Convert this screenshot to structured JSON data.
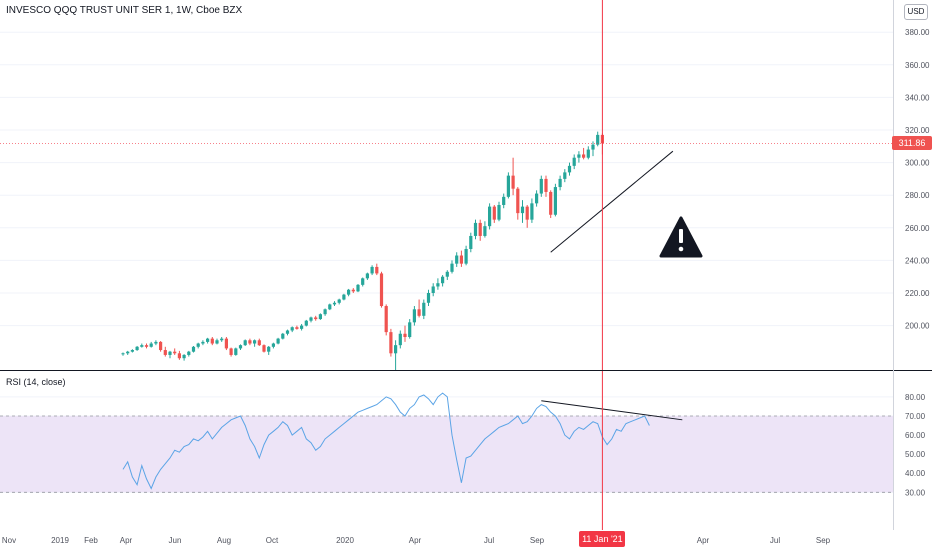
{
  "header": {
    "title": "INVESCO QQQ TRUST UNIT SER 1, 1W, Cboe BZX",
    "currency": "USD"
  },
  "rsi": {
    "label": "RSI (14, close)"
  },
  "colors": {
    "up": "#26a69a",
    "down": "#ef5350",
    "rsi_line": "#5ba4e6",
    "rsi_band": "#ede4f7",
    "crosshair": "#f23645",
    "grid": "#f0f3fa"
  },
  "crosshair": {
    "price_label": "311.86",
    "date_label": "11 Jan '21"
  },
  "icons": {
    "warning": "warning-icon"
  },
  "chart_data": [
    {
      "type": "candlestick",
      "title": "INVESCO QQQ TRUST UNIT SER 1, 1W, Cboe BZX",
      "y_ticks": [
        "200.00",
        "220.00",
        "240.00",
        "260.00",
        "280.00",
        "300.00",
        "320.00",
        "340.00",
        "360.00",
        "380.00"
      ],
      "ylim": [
        180,
        390
      ],
      "x_ticks": [
        "Nov",
        "2019",
        "Feb",
        "Apr",
        "Jun",
        "Aug",
        "Oct",
        "2020",
        "Apr",
        "Jul",
        "Sep",
        "11 Jan '21",
        "Apr",
        "Jul",
        "Sep"
      ],
      "last_price": 311.86,
      "trendline": {
        "from": {
          "week": 91,
          "value": 245
        },
        "to": {
          "week": 117,
          "value": 307
        }
      },
      "candles": [
        {
          "o": 182.5,
          "h": 183.5,
          "l": 181.5,
          "c": 183
        },
        {
          "o": 183,
          "h": 184.5,
          "l": 182,
          "c": 184
        },
        {
          "o": 184,
          "h": 185.5,
          "l": 183.5,
          "c": 185
        },
        {
          "o": 185,
          "h": 187.5,
          "l": 184.5,
          "c": 187
        },
        {
          "o": 187,
          "h": 189,
          "l": 186.5,
          "c": 188
        },
        {
          "o": 188,
          "h": 189,
          "l": 186,
          "c": 187
        },
        {
          "o": 187,
          "h": 190,
          "l": 186.5,
          "c": 189
        },
        {
          "o": 189,
          "h": 191,
          "l": 188,
          "c": 190
        },
        {
          "o": 190,
          "h": 190.5,
          "l": 184,
          "c": 185
        },
        {
          "o": 185,
          "h": 187,
          "l": 181,
          "c": 182
        },
        {
          "o": 182,
          "h": 184.5,
          "l": 180,
          "c": 184
        },
        {
          "o": 184,
          "h": 186,
          "l": 182,
          "c": 183
        },
        {
          "o": 183,
          "h": 184.5,
          "l": 179,
          "c": 180
        },
        {
          "o": 180,
          "h": 182.5,
          "l": 178.5,
          "c": 182
        },
        {
          "o": 182,
          "h": 184.5,
          "l": 181,
          "c": 184
        },
        {
          "o": 184,
          "h": 187.5,
          "l": 183.5,
          "c": 187
        },
        {
          "o": 187,
          "h": 189.5,
          "l": 186,
          "c": 189
        },
        {
          "o": 189,
          "h": 191,
          "l": 188,
          "c": 190
        },
        {
          "o": 190,
          "h": 192.5,
          "l": 189,
          "c": 192
        },
        {
          "o": 192,
          "h": 193,
          "l": 188,
          "c": 189
        },
        {
          "o": 189,
          "h": 192,
          "l": 188.5,
          "c": 191
        },
        {
          "o": 191,
          "h": 193,
          "l": 190,
          "c": 192
        },
        {
          "o": 192,
          "h": 193,
          "l": 185,
          "c": 186
        },
        {
          "o": 186,
          "h": 186.5,
          "l": 181,
          "c": 182
        },
        {
          "o": 182,
          "h": 186.5,
          "l": 181.5,
          "c": 186
        },
        {
          "o": 186,
          "h": 188.5,
          "l": 185,
          "c": 188
        },
        {
          "o": 188,
          "h": 191.5,
          "l": 187.5,
          "c": 191
        },
        {
          "o": 191,
          "h": 192,
          "l": 188,
          "c": 189
        },
        {
          "o": 189,
          "h": 191.5,
          "l": 187,
          "c": 191
        },
        {
          "o": 191,
          "h": 192,
          "l": 187.5,
          "c": 188
        },
        {
          "o": 188,
          "h": 188.5,
          "l": 183.5,
          "c": 184
        },
        {
          "o": 184,
          "h": 187.5,
          "l": 182,
          "c": 187
        },
        {
          "o": 187,
          "h": 189.5,
          "l": 186,
          "c": 189
        },
        {
          "o": 189,
          "h": 192.5,
          "l": 188.5,
          "c": 192
        },
        {
          "o": 192,
          "h": 195.5,
          "l": 191.5,
          "c": 195
        },
        {
          "o": 195,
          "h": 197.5,
          "l": 194,
          "c": 197
        },
        {
          "o": 197,
          "h": 199.5,
          "l": 196,
          "c": 199
        },
        {
          "o": 199,
          "h": 200,
          "l": 197.5,
          "c": 198
        },
        {
          "o": 198,
          "h": 201,
          "l": 197,
          "c": 200
        },
        {
          "o": 200,
          "h": 203.5,
          "l": 199.5,
          "c": 203
        },
        {
          "o": 203,
          "h": 205.5,
          "l": 202,
          "c": 205
        },
        {
          "o": 205,
          "h": 206,
          "l": 203,
          "c": 204
        },
        {
          "o": 204,
          "h": 207.5,
          "l": 203.5,
          "c": 207
        },
        {
          "o": 207,
          "h": 210.5,
          "l": 206,
          "c": 210
        },
        {
          "o": 210,
          "h": 213.5,
          "l": 209.5,
          "c": 213
        },
        {
          "o": 213,
          "h": 215,
          "l": 212,
          "c": 214
        },
        {
          "o": 214,
          "h": 216.5,
          "l": 213,
          "c": 216
        },
        {
          "o": 216,
          "h": 219.5,
          "l": 215.5,
          "c": 219
        },
        {
          "o": 219,
          "h": 222.5,
          "l": 218,
          "c": 222
        },
        {
          "o": 222,
          "h": 223,
          "l": 220,
          "c": 221
        },
        {
          "o": 221,
          "h": 225.5,
          "l": 220.5,
          "c": 225
        },
        {
          "o": 225,
          "h": 229.5,
          "l": 224,
          "c": 229
        },
        {
          "o": 229,
          "h": 232.5,
          "l": 228,
          "c": 232
        },
        {
          "o": 232,
          "h": 237,
          "l": 231,
          "c": 236
        },
        {
          "o": 236,
          "h": 238,
          "l": 231,
          "c": 232
        },
        {
          "o": 232,
          "h": 233,
          "l": 211,
          "c": 212
        },
        {
          "o": 212,
          "h": 213,
          "l": 194,
          "c": 196
        },
        {
          "o": 196,
          "h": 198,
          "l": 181,
          "c": 183
        },
        {
          "o": 183,
          "h": 191,
          "l": 170,
          "c": 188
        },
        {
          "o": 188,
          "h": 197,
          "l": 186,
          "c": 195
        },
        {
          "o": 195,
          "h": 200,
          "l": 190,
          "c": 193
        },
        {
          "o": 193,
          "h": 204,
          "l": 192,
          "c": 202
        },
        {
          "o": 202,
          "h": 212,
          "l": 200,
          "c": 210
        },
        {
          "o": 210,
          "h": 216,
          "l": 205,
          "c": 206
        },
        {
          "o": 206,
          "h": 216,
          "l": 204,
          "c": 214
        },
        {
          "o": 214,
          "h": 222,
          "l": 212,
          "c": 220
        },
        {
          "o": 220,
          "h": 226,
          "l": 218,
          "c": 224
        },
        {
          "o": 224,
          "h": 229,
          "l": 222,
          "c": 226
        },
        {
          "o": 226,
          "h": 231,
          "l": 224,
          "c": 230
        },
        {
          "o": 230,
          "h": 234,
          "l": 228,
          "c": 233
        },
        {
          "o": 233,
          "h": 240,
          "l": 232,
          "c": 238
        },
        {
          "o": 238,
          "h": 245,
          "l": 236,
          "c": 243
        },
        {
          "o": 243,
          "h": 246,
          "l": 236,
          "c": 238
        },
        {
          "o": 238,
          "h": 249,
          "l": 237,
          "c": 247
        },
        {
          "o": 247,
          "h": 257,
          "l": 245,
          "c": 255
        },
        {
          "o": 255,
          "h": 265,
          "l": 253,
          "c": 263
        },
        {
          "o": 263,
          "h": 265,
          "l": 252,
          "c": 255
        },
        {
          "o": 255,
          "h": 264,
          "l": 254,
          "c": 261
        },
        {
          "o": 261,
          "h": 275,
          "l": 259,
          "c": 273
        },
        {
          "o": 273,
          "h": 274,
          "l": 263,
          "c": 265
        },
        {
          "o": 265,
          "h": 276,
          "l": 264,
          "c": 274
        },
        {
          "o": 274,
          "h": 281,
          "l": 272,
          "c": 279
        },
        {
          "o": 279,
          "h": 294,
          "l": 278,
          "c": 292
        },
        {
          "o": 292,
          "h": 303,
          "l": 280,
          "c": 284
        },
        {
          "o": 284,
          "h": 285,
          "l": 265,
          "c": 269
        },
        {
          "o": 269,
          "h": 277,
          "l": 263,
          "c": 273
        },
        {
          "o": 273,
          "h": 274,
          "l": 260,
          "c": 265
        },
        {
          "o": 265,
          "h": 278,
          "l": 263,
          "c": 275
        },
        {
          "o": 275,
          "h": 283,
          "l": 273,
          "c": 281
        },
        {
          "o": 281,
          "h": 292,
          "l": 279,
          "c": 290
        },
        {
          "o": 290,
          "h": 292,
          "l": 279,
          "c": 282
        },
        {
          "o": 282,
          "h": 283,
          "l": 266,
          "c": 268
        },
        {
          "o": 268,
          "h": 287,
          "l": 267,
          "c": 285
        },
        {
          "o": 285,
          "h": 292,
          "l": 283,
          "c": 290
        },
        {
          "o": 290,
          "h": 296,
          "l": 288,
          "c": 294
        },
        {
          "o": 294,
          "h": 300,
          "l": 292,
          "c": 298
        },
        {
          "o": 298,
          "h": 305,
          "l": 296,
          "c": 303
        },
        {
          "o": 303,
          "h": 307,
          "l": 300,
          "c": 305
        },
        {
          "o": 305,
          "h": 309,
          "l": 302,
          "c": 303
        },
        {
          "o": 303,
          "h": 310,
          "l": 302,
          "c": 308
        },
        {
          "o": 308,
          "h": 313,
          "l": 304,
          "c": 311
        },
        {
          "o": 311,
          "h": 319,
          "l": 310,
          "c": 317
        },
        {
          "o": 317,
          "h": 318,
          "l": 305,
          "c": 311.86
        }
      ]
    },
    {
      "type": "line",
      "title": "RSI (14, close)",
      "y_ticks": [
        "30.00",
        "40.00",
        "50.00",
        "60.00",
        "70.00",
        "80.00"
      ],
      "ylim": [
        27,
        85
      ],
      "band": [
        30,
        70
      ],
      "trendline": {
        "from": {
          "week": 89,
          "value": 78
        },
        "to": {
          "week": 119,
          "value": 68
        }
      },
      "series": [
        {
          "values": [
            42,
            46,
            38,
            34,
            44,
            37,
            32,
            38,
            42,
            45,
            48,
            52,
            51,
            54,
            55,
            58,
            57,
            59,
            62,
            58,
            61,
            64,
            66,
            68,
            69,
            70,
            65,
            58,
            54,
            48,
            55,
            60,
            62,
            64,
            67,
            65,
            60,
            62,
            64,
            58,
            56,
            52,
            54,
            58,
            60,
            62,
            64,
            66,
            68,
            70,
            72,
            73,
            74,
            75,
            76,
            78,
            80,
            79,
            76,
            72,
            70,
            74,
            76,
            80,
            81,
            79,
            76,
            80,
            82,
            80,
            60,
            47,
            35,
            48,
            49,
            52,
            55,
            58,
            60,
            62,
            64,
            65,
            66,
            68,
            70,
            66,
            67,
            70,
            74,
            76,
            75,
            72,
            70,
            66,
            60,
            58,
            62,
            64,
            63,
            65,
            67,
            66,
            59,
            55,
            58,
            63,
            62,
            66,
            67,
            68,
            69,
            70,
            65
          ]
        }
      ]
    }
  ]
}
